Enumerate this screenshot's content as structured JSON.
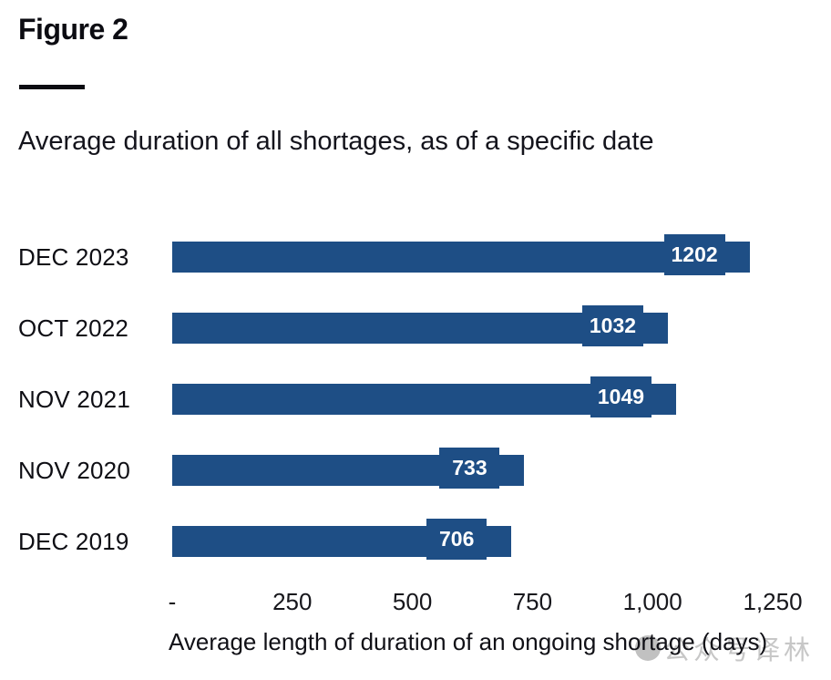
{
  "figure_label": "Figure 2",
  "subtitle": "Average duration of all shortages, as of a specific date",
  "colors": {
    "bar": "#1e4e85",
    "badge_text": "#ffffff",
    "text": "#0c0c12",
    "watermark": "#9a9a9a"
  },
  "chart_data": {
    "type": "bar",
    "orientation": "horizontal",
    "title": "Average duration of all shortages, as of a specific date",
    "categories": [
      "DEC 2023",
      "OCT 2022",
      "NOV 2021",
      "NOV 2020",
      "DEC 2019"
    ],
    "values": [
      1202,
      1032,
      1049,
      733,
      706
    ],
    "value_labels": [
      "1202",
      "1032",
      "1049",
      "733",
      "706"
    ],
    "xlabel": "Average length of duration of an ongoing shortage (days)",
    "xlim": [
      0,
      1250
    ],
    "x_ticks": [
      {
        "value": 0,
        "label": "-"
      },
      {
        "value": 250,
        "label": "250"
      },
      {
        "value": 500,
        "label": "500"
      },
      {
        "value": 750,
        "label": "750"
      },
      {
        "value": 1000,
        "label": "1,000"
      },
      {
        "value": 1250,
        "label": "1,250"
      }
    ],
    "grid": false,
    "legend": false,
    "bar_color": "#1e4e85",
    "value_label_style": "white bold number on bar-colored badge, inset from bar end"
  },
  "watermark": {
    "icon": "circle-logo-icon",
    "text": "公众号译林"
  }
}
